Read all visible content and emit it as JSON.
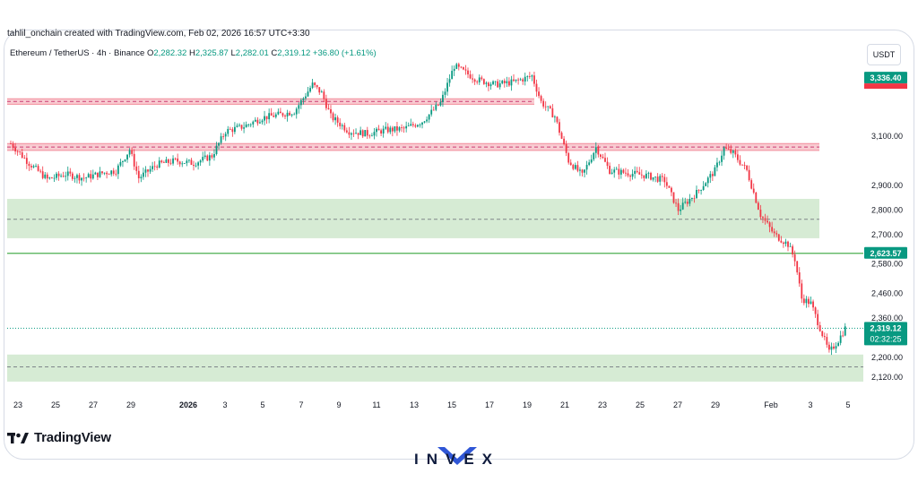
{
  "header": {
    "credit": "tahlil_onchain created with TradingView.com, Feb 02, 2026 16:57 UTC+3:30",
    "symbol": "Ethereum / TetherUS · 4h · Binance",
    "o_label": "O",
    "o_value": "2,282.32",
    "h_label": "H",
    "h_value": "2,325.87",
    "l_label": "L",
    "l_value": "2,282.01",
    "c_label": "C",
    "c_value": "2,319.12",
    "change": "+36.80 (+1.61%)",
    "currency": "USDT"
  },
  "branding": {
    "tradingview": "TradingView",
    "watermark": "INVEX"
  },
  "colors": {
    "up": "#089981",
    "down": "#f23645",
    "resistance_zone": "#f7c5cc",
    "support_zone": "#cfe8cc",
    "support_line": "#4caf50"
  },
  "chart_data": {
    "type": "candlestick",
    "x_tick_labels": [
      "23",
      "25",
      "27",
      "29",
      "2026",
      "3",
      "5",
      "7",
      "9",
      "11",
      "13",
      "15",
      "17",
      "19",
      "21",
      "23",
      "25",
      "27",
      "29",
      "Feb",
      "3",
      "5"
    ],
    "y_tick_labels": [
      "3,100.00",
      "2,900.00",
      "2,800.00",
      "2,700.00",
      "2,580.00",
      "2,460.00",
      "2,360.00",
      "2,200.00",
      "2,120.00"
    ],
    "y_ticks": [
      3100,
      2900,
      2800,
      2700,
      2580,
      2460,
      2360,
      2200,
      2120
    ],
    "ylim": [
      2075,
      3470
    ],
    "price_labels": [
      {
        "text": "3,336.40",
        "value": 3336.4,
        "color": "#089981"
      },
      {
        "text": "2,623.57",
        "value": 2623.57,
        "color": "#089981"
      },
      {
        "text": "2,319.12",
        "value": 2319.12,
        "color": "#089981",
        "sub": "02:32:25"
      }
    ],
    "zones": [
      {
        "kind": "resistance",
        "low": 3230,
        "high": 3252,
        "mid": 3241,
        "x_end": "Jan 19"
      },
      {
        "kind": "resistance",
        "low": 3042,
        "high": 3070,
        "mid": 3056,
        "x_end": "Feb 3"
      },
      {
        "kind": "support",
        "low": 2685,
        "high": 2845,
        "mid": 2762,
        "x_end": "Feb 3"
      },
      {
        "kind": "support",
        "low": 2102,
        "high": 2212,
        "mid": 2162,
        "x_end": "Feb 5"
      }
    ],
    "support_line": 2623.57,
    "last_price_line": 2319.12,
    "path": [
      [
        0,
        3070
      ],
      [
        8,
        2990
      ],
      [
        16,
        2925
      ],
      [
        24,
        2945
      ],
      [
        32,
        2930
      ],
      [
        40,
        2950
      ],
      [
        46,
        2960
      ],
      [
        52,
        3045
      ],
      [
        56,
        2930
      ],
      [
        64,
        2985
      ],
      [
        72,
        3000
      ],
      [
        80,
        2990
      ],
      [
        88,
        3020
      ],
      [
        94,
        3120
      ],
      [
        102,
        3140
      ],
      [
        110,
        3175
      ],
      [
        116,
        3185
      ],
      [
        124,
        3200
      ],
      [
        132,
        3310
      ],
      [
        136,
        3275
      ],
      [
        140,
        3180
      ],
      [
        148,
        3120
      ],
      [
        156,
        3110
      ],
      [
        164,
        3125
      ],
      [
        172,
        3130
      ],
      [
        180,
        3160
      ],
      [
        188,
        3235
      ],
      [
        194,
        3385
      ],
      [
        204,
        3330
      ],
      [
        212,
        3310
      ],
      [
        220,
        3320
      ],
      [
        228,
        3345
      ],
      [
        232,
        3240
      ],
      [
        238,
        3180
      ],
      [
        244,
        3000
      ],
      [
        250,
        2940
      ],
      [
        256,
        3055
      ],
      [
        262,
        2960
      ],
      [
        270,
        2950
      ],
      [
        278,
        2940
      ],
      [
        286,
        2920
      ],
      [
        292,
        2800
      ],
      [
        300,
        2870
      ],
      [
        308,
        2960
      ],
      [
        312,
        3050
      ],
      [
        316,
        3030
      ],
      [
        322,
        2960
      ],
      [
        328,
        2780
      ],
      [
        334,
        2700
      ],
      [
        340,
        2660
      ],
      [
        343,
        2600
      ],
      [
        346,
        2440
      ],
      [
        350,
        2420
      ],
      [
        354,
        2320
      ],
      [
        358,
        2220
      ],
      [
        362,
        2270
      ],
      [
        365,
        2319
      ]
    ]
  }
}
